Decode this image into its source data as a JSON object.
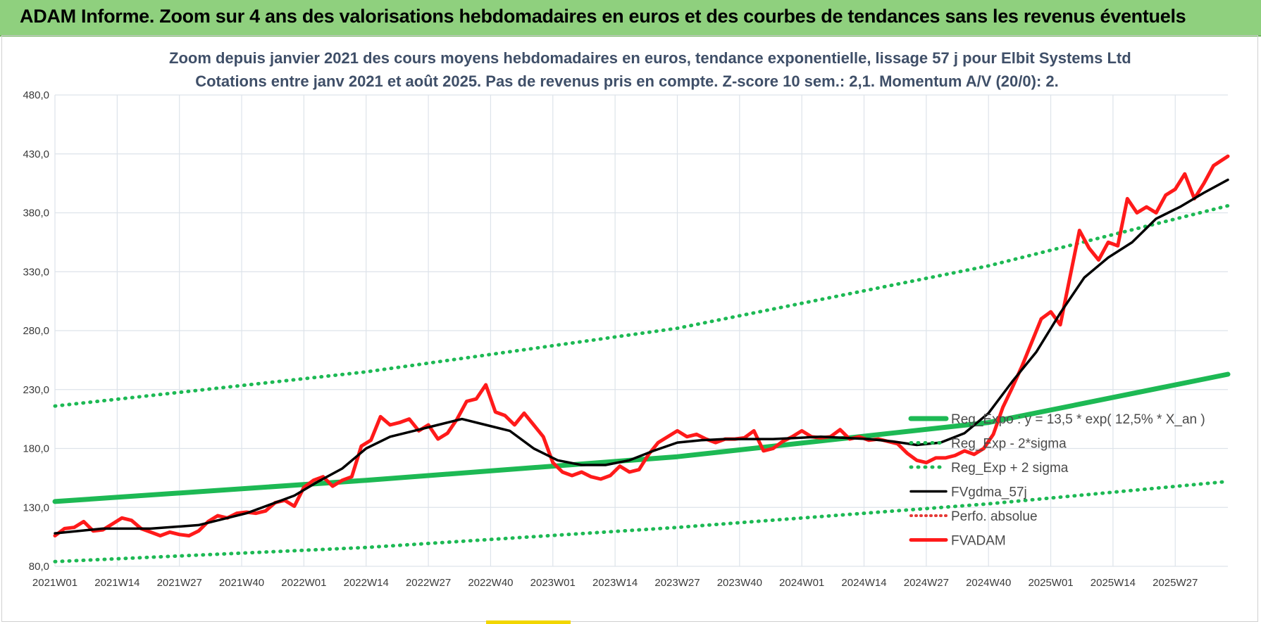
{
  "banner": {
    "title": "ADAM Informe. Zoom sur 4 ans des valorisations hebdomadaires en euros et des courbes de tendances sans les revenus éventuels"
  },
  "colors": {
    "banner_bg": "#8fd07e",
    "trend": "#1db954",
    "band": "#1db954",
    "smooth": "#000000",
    "perf": "#e53935",
    "price": "#ff1a1a",
    "grid": "#dde3ea",
    "title_text": "#3f4f68"
  },
  "chart_data": {
    "type": "line",
    "title": "Zoom depuis janvier 2021 des cours moyens hebdomadaires en euros, tendance exponentielle, lissage 57 j pour Elbit Systems Ltd",
    "subtitle": "Cotations entre janv 2021 et août 2025. Pas de revenus pris en compte. Z-score 10 sem.: 2,1. Momentum A/V (20/0): 2.",
    "xlabel": "",
    "ylabel": "",
    "ylim": [
      80,
      480
    ],
    "y_ticks": [
      "80,0",
      "130,0",
      "180,0",
      "230,0",
      "280,0",
      "330,0",
      "380,0",
      "430,0",
      "480,0"
    ],
    "x_ticks": [
      "2021W01",
      "2021W14",
      "2021W27",
      "2021W40",
      "2022W01",
      "2022W14",
      "2022W27",
      "2022W40",
      "2023W01",
      "2023W14",
      "2023W27",
      "2023W40",
      "2024W01",
      "2024W14",
      "2024W27",
      "2024W40",
      "2025W01",
      "2025W14",
      "2025W27"
    ],
    "week_range": [
      0,
      245
    ],
    "grid": true,
    "legend_position": "right-inside",
    "series": [
      {
        "name": "Reg_Expo : y = 13,5 * exp( 12,5% *  X_an )",
        "style": "solid-thick",
        "points": [
          [
            0,
            135
          ],
          [
            65,
            153
          ],
          [
            130,
            173
          ],
          [
            195,
            202
          ],
          [
            245,
            243
          ]
        ]
      },
      {
        "name": "Reg_Exp - 2*sigma",
        "style": "dotted",
        "points": [
          [
            0,
            84
          ],
          [
            65,
            96
          ],
          [
            130,
            113
          ],
          [
            195,
            133
          ],
          [
            245,
            152
          ]
        ]
      },
      {
        "name": "Reg_Exp + 2 sigma",
        "style": "dotted",
        "points": [
          [
            0,
            216
          ],
          [
            65,
            245
          ],
          [
            130,
            282
          ],
          [
            195,
            335
          ],
          [
            245,
            386
          ]
        ]
      },
      {
        "name": "FVgdma_57j",
        "style": "solid",
        "points": [
          [
            0,
            108
          ],
          [
            10,
            112
          ],
          [
            20,
            112
          ],
          [
            30,
            115
          ],
          [
            40,
            125
          ],
          [
            50,
            140
          ],
          [
            55,
            152
          ],
          [
            60,
            163
          ],
          [
            65,
            180
          ],
          [
            70,
            190
          ],
          [
            75,
            195
          ],
          [
            80,
            200
          ],
          [
            85,
            205
          ],
          [
            90,
            200
          ],
          [
            95,
            195
          ],
          [
            100,
            180
          ],
          [
            105,
            170
          ],
          [
            110,
            166
          ],
          [
            115,
            166
          ],
          [
            120,
            170
          ],
          [
            125,
            178
          ],
          [
            130,
            185
          ],
          [
            135,
            187
          ],
          [
            140,
            188
          ],
          [
            150,
            188
          ],
          [
            160,
            190
          ],
          [
            170,
            188
          ],
          [
            175,
            186
          ],
          [
            180,
            183
          ],
          [
            185,
            185
          ],
          [
            190,
            193
          ],
          [
            195,
            210
          ],
          [
            200,
            237
          ],
          [
            205,
            262
          ],
          [
            210,
            295
          ],
          [
            215,
            325
          ],
          [
            220,
            342
          ],
          [
            225,
            355
          ],
          [
            230,
            375
          ],
          [
            235,
            385
          ],
          [
            240,
            397
          ],
          [
            245,
            408
          ]
        ]
      },
      {
        "name": "Perfo. absolue",
        "style": "dotted",
        "points": []
      },
      {
        "name": "FVADAM",
        "style": "solid-thick",
        "points": [
          [
            0,
            106
          ],
          [
            2,
            112
          ],
          [
            4,
            113
          ],
          [
            6,
            118
          ],
          [
            8,
            110
          ],
          [
            10,
            111
          ],
          [
            12,
            116
          ],
          [
            14,
            121
          ],
          [
            16,
            119
          ],
          [
            18,
            112
          ],
          [
            20,
            109
          ],
          [
            22,
            106
          ],
          [
            24,
            109
          ],
          [
            26,
            107
          ],
          [
            28,
            106
          ],
          [
            30,
            110
          ],
          [
            32,
            118
          ],
          [
            34,
            123
          ],
          [
            36,
            121
          ],
          [
            38,
            125
          ],
          [
            40,
            126
          ],
          [
            42,
            125
          ],
          [
            44,
            127
          ],
          [
            46,
            134
          ],
          [
            48,
            136
          ],
          [
            50,
            131
          ],
          [
            52,
            147
          ],
          [
            54,
            153
          ],
          [
            56,
            156
          ],
          [
            58,
            148
          ],
          [
            60,
            153
          ],
          [
            62,
            156
          ],
          [
            64,
            182
          ],
          [
            66,
            187
          ],
          [
            68,
            207
          ],
          [
            70,
            200
          ],
          [
            72,
            202
          ],
          [
            74,
            205
          ],
          [
            76,
            195
          ],
          [
            78,
            200
          ],
          [
            80,
            188
          ],
          [
            82,
            193
          ],
          [
            84,
            205
          ],
          [
            86,
            220
          ],
          [
            88,
            222
          ],
          [
            90,
            234
          ],
          [
            92,
            211
          ],
          [
            94,
            208
          ],
          [
            96,
            200
          ],
          [
            98,
            210
          ],
          [
            100,
            200
          ],
          [
            102,
            190
          ],
          [
            104,
            168
          ],
          [
            106,
            160
          ],
          [
            108,
            157
          ],
          [
            110,
            160
          ],
          [
            112,
            156
          ],
          [
            114,
            154
          ],
          [
            116,
            157
          ],
          [
            118,
            165
          ],
          [
            120,
            160
          ],
          [
            122,
            162
          ],
          [
            124,
            175
          ],
          [
            126,
            185
          ],
          [
            128,
            190
          ],
          [
            130,
            195
          ],
          [
            132,
            190
          ],
          [
            134,
            192
          ],
          [
            136,
            188
          ],
          [
            138,
            185
          ],
          [
            140,
            188
          ],
          [
            142,
            188
          ],
          [
            144,
            189
          ],
          [
            146,
            195
          ],
          [
            148,
            178
          ],
          [
            150,
            180
          ],
          [
            152,
            186
          ],
          [
            154,
            190
          ],
          [
            156,
            195
          ],
          [
            158,
            190
          ],
          [
            160,
            189
          ],
          [
            162,
            190
          ],
          [
            164,
            196
          ],
          [
            166,
            188
          ],
          [
            168,
            190
          ],
          [
            170,
            187
          ],
          [
            172,
            188
          ],
          [
            174,
            186
          ],
          [
            176,
            184
          ],
          [
            178,
            176
          ],
          [
            180,
            170
          ],
          [
            182,
            168
          ],
          [
            184,
            172
          ],
          [
            186,
            172
          ],
          [
            188,
            174
          ],
          [
            190,
            178
          ],
          [
            192,
            175
          ],
          [
            194,
            180
          ],
          [
            196,
            192
          ],
          [
            198,
            215
          ],
          [
            200,
            232
          ],
          [
            202,
            250
          ],
          [
            204,
            270
          ],
          [
            206,
            290
          ],
          [
            208,
            296
          ],
          [
            210,
            285
          ],
          [
            212,
            325
          ],
          [
            214,
            365
          ],
          [
            216,
            350
          ],
          [
            218,
            340
          ],
          [
            220,
            355
          ],
          [
            222,
            352
          ],
          [
            224,
            392
          ],
          [
            226,
            380
          ],
          [
            228,
            385
          ],
          [
            230,
            380
          ],
          [
            232,
            395
          ],
          [
            234,
            400
          ],
          [
            236,
            413
          ],
          [
            238,
            392
          ],
          [
            240,
            405
          ],
          [
            242,
            420
          ],
          [
            245,
            428
          ]
        ]
      }
    ]
  }
}
